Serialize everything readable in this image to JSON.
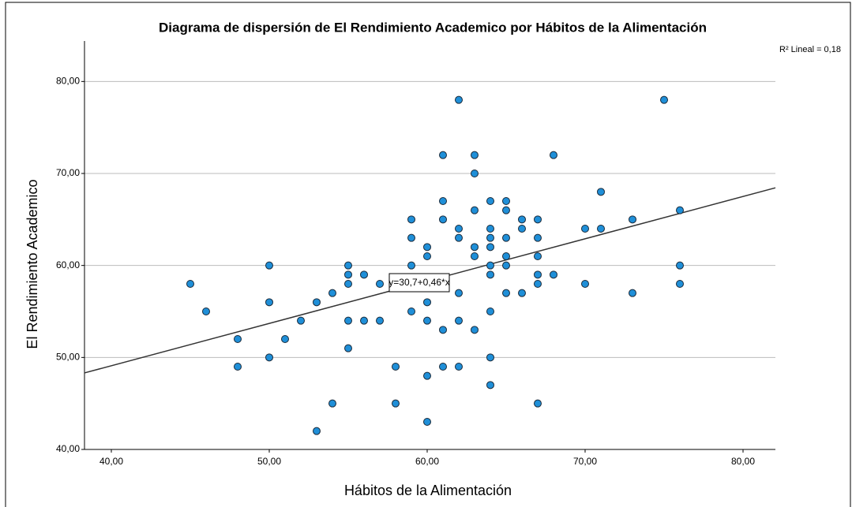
{
  "chart_data": {
    "type": "scatter",
    "title": "Diagrama de dispersión de El Rendimiento Academico por Hábitos de la Alimentación",
    "x_label": "Hábitos de la Alimentación",
    "y_label": "El Rendimiento Academico",
    "r2_label": "R² Lineal = 0,18",
    "fit": {
      "intercept": 30.7,
      "slope": 0.46,
      "label": "y=30,7+0,46*x",
      "color": "#333333"
    },
    "color": "#1f8fd8",
    "grid": true,
    "xlim": [
      38.3,
      82.05
    ],
    "ylim": [
      40,
      84.4
    ],
    "xticks": [
      {
        "value": 40,
        "label": "40,00"
      },
      {
        "value": 50,
        "label": "50,00"
      },
      {
        "value": 60,
        "label": "60,00"
      },
      {
        "value": 70,
        "label": "70,00"
      },
      {
        "value": 80,
        "label": "80,00"
      }
    ],
    "yticks": [
      {
        "value": 40,
        "label": "40,00"
      },
      {
        "value": 50,
        "label": "50,00"
      },
      {
        "value": 60,
        "label": "60,00"
      },
      {
        "value": 70,
        "label": "70,00"
      },
      {
        "value": 80,
        "label": "80,00"
      }
    ],
    "x": [
      45,
      46,
      48,
      48,
      50,
      50,
      50,
      51,
      52,
      53,
      53,
      54,
      54,
      55,
      55,
      55,
      55,
      55,
      56,
      56,
      57,
      57,
      58,
      58,
      59,
      59,
      59,
      59,
      60,
      60,
      60,
      60,
      60,
      60,
      61,
      61,
      61,
      61,
      61,
      62,
      62,
      62,
      62,
      62,
      62,
      63,
      63,
      63,
      63,
      63,
      63,
      64,
      64,
      64,
      64,
      64,
      64,
      64,
      64,
      64,
      65,
      65,
      65,
      65,
      65,
      65,
      66,
      66,
      66,
      67,
      67,
      67,
      67,
      67,
      67,
      68,
      68,
      70,
      70,
      71,
      71,
      73,
      73,
      75,
      76,
      76,
      76
    ],
    "values": [
      58,
      55,
      52,
      49,
      60,
      56,
      50,
      52,
      54,
      56,
      42,
      57,
      45,
      60,
      59,
      58,
      54,
      51,
      59,
      54,
      58,
      54,
      49,
      45,
      65,
      63,
      60,
      55,
      62,
      61,
      56,
      54,
      48,
      43,
      72,
      67,
      65,
      53,
      49,
      78,
      64,
      63,
      57,
      54,
      49,
      72,
      70,
      66,
      62,
      61,
      53,
      67,
      64,
      63,
      62,
      60,
      59,
      55,
      50,
      47,
      67,
      66,
      63,
      61,
      60,
      57,
      65,
      64,
      57,
      65,
      63,
      61,
      59,
      58,
      45,
      72,
      59,
      64,
      58,
      68,
      64,
      65,
      57,
      78,
      66,
      60,
      58
    ]
  }
}
